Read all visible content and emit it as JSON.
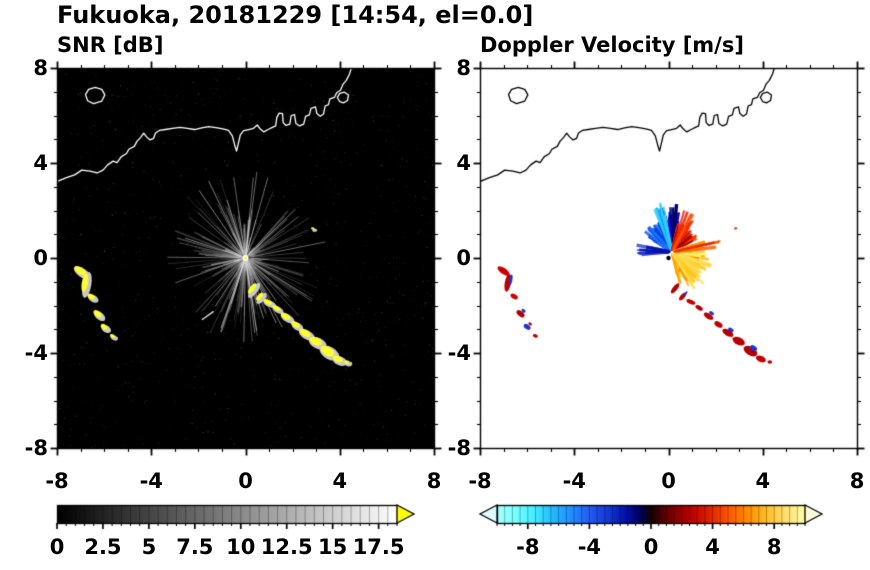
{
  "title": "Fukuoka, 20181229 [14:54, el=0.0]",
  "panels": {
    "snr": {
      "label": "SNR [dB]"
    },
    "doppler": {
      "label": "Doppler Velocity [m/s]"
    }
  },
  "axes": {
    "xlim": [
      -8,
      8
    ],
    "ylim": [
      -8,
      8
    ],
    "xtick_labels": [
      "-8",
      "-4",
      "0",
      "4",
      "8"
    ],
    "xtick_values": [
      -8,
      -4,
      0,
      4,
      8
    ],
    "ytick_labels": [
      "8",
      "4",
      "0",
      "-4",
      "-8"
    ],
    "ytick_values": [
      8,
      4,
      0,
      -4,
      -8
    ]
  },
  "colorbars": {
    "snr": {
      "range": [
        0,
        18.5
      ],
      "tick_labels": [
        "0",
        "2.5",
        "5",
        "7.5",
        "10",
        "12.5",
        "15",
        "17.5"
      ],
      "tick_values": [
        0,
        2.5,
        5,
        7.5,
        10,
        12.5,
        15,
        17.5
      ],
      "stops": [
        [
          0,
          "#000000"
        ],
        [
          1,
          "#ffffff"
        ]
      ],
      "over_color": "#ffff00"
    },
    "doppler": {
      "range": [
        -10,
        10
      ],
      "tick_labels": [
        "-8",
        "-4",
        "0",
        "4",
        "8"
      ],
      "tick_values": [
        -8,
        -4,
        0,
        4,
        8
      ],
      "stops": [
        [
          0,
          "#aaffff"
        ],
        [
          0.06,
          "#77ffff"
        ],
        [
          0.12,
          "#44eeff"
        ],
        [
          0.18,
          "#22bbff"
        ],
        [
          0.25,
          "#2288ff"
        ],
        [
          0.31,
          "#2255ee"
        ],
        [
          0.37,
          "#1133cc"
        ],
        [
          0.42,
          "#0011aa"
        ],
        [
          0.46,
          "#000066"
        ],
        [
          0.5,
          "#150000"
        ],
        [
          0.54,
          "#550000"
        ],
        [
          0.58,
          "#880000"
        ],
        [
          0.63,
          "#bb0000"
        ],
        [
          0.69,
          "#dd2200"
        ],
        [
          0.75,
          "#ff5500"
        ],
        [
          0.81,
          "#ff8800"
        ],
        [
          0.87,
          "#ffbb22"
        ],
        [
          0.93,
          "#ffdd66"
        ],
        [
          1,
          "#ffffaa"
        ]
      ],
      "under_color": "#ddffff",
      "over_color": "#ffffdd"
    }
  },
  "chart_data": {
    "type": "heatmap",
    "title": "Fukuoka, 20181229 [14:54, el=0.0]",
    "xlim": [
      -8,
      8
    ],
    "ylim": [
      -8,
      8
    ],
    "radar_center": [
      0,
      0
    ],
    "coastline": {
      "main": [
        [
          -8.05,
          3.2
        ],
        [
          -7.6,
          3.38
        ],
        [
          -7.25,
          3.5
        ],
        [
          -6.95,
          3.7
        ],
        [
          -6.6,
          3.66
        ],
        [
          -6.3,
          3.58
        ],
        [
          -6.05,
          3.7
        ],
        [
          -5.85,
          3.92
        ],
        [
          -5.62,
          4.08
        ],
        [
          -5.45,
          4.02
        ],
        [
          -5.28,
          4.26
        ],
        [
          -5.05,
          4.4
        ],
        [
          -4.95,
          4.58
        ],
        [
          -4.72,
          4.7
        ],
        [
          -4.6,
          4.92
        ],
        [
          -4.45,
          5.08
        ],
        [
          -4.32,
          5.26
        ],
        [
          -4.2,
          5.1
        ],
        [
          -4.05,
          4.97
        ],
        [
          -3.9,
          5.04
        ],
        [
          -3.82,
          5.26
        ],
        [
          -3.66,
          5.37
        ],
        [
          -3.4,
          5.41
        ],
        [
          -3.1,
          5.46
        ],
        [
          -2.78,
          5.5
        ],
        [
          -2.46,
          5.46
        ],
        [
          -2.16,
          5.41
        ],
        [
          -1.86,
          5.48
        ],
        [
          -1.56,
          5.53
        ],
        [
          -1.26,
          5.49
        ],
        [
          -0.96,
          5.44
        ],
        [
          -0.72,
          5.37
        ],
        [
          -0.56,
          5.14
        ],
        [
          -0.46,
          4.76
        ],
        [
          -0.38,
          4.5
        ],
        [
          -0.3,
          4.84
        ],
        [
          -0.22,
          5.18
        ],
        [
          -0.08,
          5.36
        ],
        [
          0.14,
          5.41
        ],
        [
          0.34,
          5.46
        ],
        [
          0.5,
          5.6
        ],
        [
          0.62,
          5.44
        ],
        [
          0.78,
          5.31
        ],
        [
          0.96,
          5.41
        ],
        [
          1.14,
          5.5
        ],
        [
          1.28,
          5.56
        ],
        [
          1.33,
          5.92
        ],
        [
          1.43,
          6.1
        ],
        [
          1.57,
          6.08
        ],
        [
          1.6,
          5.7
        ],
        [
          1.72,
          5.58
        ],
        [
          1.88,
          5.64
        ],
        [
          1.94,
          6.0
        ],
        [
          2.08,
          6.04
        ],
        [
          2.14,
          5.66
        ],
        [
          2.3,
          5.56
        ],
        [
          2.47,
          5.64
        ],
        [
          2.55,
          5.96
        ],
        [
          2.71,
          6.03
        ],
        [
          2.78,
          6.3
        ],
        [
          2.97,
          6.36
        ],
        [
          3.03,
          6.08
        ],
        [
          3.17,
          5.97
        ],
        [
          3.31,
          6.06
        ],
        [
          3.38,
          6.4
        ],
        [
          3.52,
          6.46
        ],
        [
          3.58,
          6.7
        ],
        [
          3.77,
          6.76
        ],
        [
          3.87,
          6.96
        ],
        [
          4.03,
          7.06
        ],
        [
          4.14,
          7.32
        ],
        [
          4.28,
          7.48
        ],
        [
          4.42,
          7.76
        ],
        [
          4.52,
          8.1
        ]
      ],
      "islands": [
        [
          [
            -6.45,
            6.5
          ],
          [
            -6.7,
            6.62
          ],
          [
            -6.79,
            6.88
          ],
          [
            -6.66,
            7.1
          ],
          [
            -6.38,
            7.18
          ],
          [
            -6.1,
            7.1
          ],
          [
            -5.97,
            6.87
          ],
          [
            -6.1,
            6.61
          ]
        ],
        [
          [
            4.0,
            6.58
          ],
          [
            3.9,
            6.76
          ],
          [
            4.0,
            6.93
          ],
          [
            4.2,
            6.98
          ],
          [
            4.37,
            6.86
          ],
          [
            4.33,
            6.63
          ],
          [
            4.16,
            6.53
          ]
        ]
      ]
    },
    "echoes": [
      {
        "x": -7.0,
        "y": -0.55,
        "rx": 0.3,
        "ry": 0.13,
        "rot": -35,
        "c": "#cc0000",
        "c2": null
      },
      {
        "x": -6.82,
        "y": -1.05,
        "rx": 0.13,
        "ry": 0.38,
        "rot": -10,
        "c": "#bb0000",
        "c2": "#2233cc"
      },
      {
        "x": -6.55,
        "y": -1.62,
        "rx": 0.17,
        "ry": 0.1,
        "rot": -30,
        "c": "#cc0000",
        "c2": null
      },
      {
        "x": -6.28,
        "y": -2.35,
        "rx": 0.2,
        "ry": 0.11,
        "rot": -40,
        "c": "#b00000",
        "c2": "#2233cc"
      },
      {
        "x": -6.0,
        "y": -2.9,
        "rx": 0.16,
        "ry": 0.1,
        "rot": -35,
        "c": "#2233cc",
        "c2": "#bb0000"
      },
      {
        "x": -5.65,
        "y": -3.28,
        "rx": 0.11,
        "ry": 0.07,
        "rot": -20,
        "c": "#bb0000",
        "c2": null
      },
      {
        "x": 0.28,
        "y": -1.28,
        "rx": 0.1,
        "ry": 0.26,
        "rot": -38,
        "c": "#b00000",
        "c2": null
      },
      {
        "x": 0.6,
        "y": -1.62,
        "rx": 0.09,
        "ry": 0.2,
        "rot": -42,
        "c": "#bb0000",
        "c2": "#2233cc"
      },
      {
        "x": 0.95,
        "y": -1.85,
        "rx": 0.2,
        "ry": 0.09,
        "rot": -22,
        "c": "#c00000",
        "c2": null
      },
      {
        "x": 1.3,
        "y": -2.1,
        "rx": 0.17,
        "ry": 0.09,
        "rot": -30,
        "c": "#b00000",
        "c2": null
      },
      {
        "x": 1.7,
        "y": -2.45,
        "rx": 0.23,
        "ry": 0.11,
        "rot": -33,
        "c": "#bb0000",
        "c2": "#2233cc"
      },
      {
        "x": 2.12,
        "y": -2.8,
        "rx": 0.19,
        "ry": 0.11,
        "rot": -30,
        "c": "#c00000",
        "c2": null
      },
      {
        "x": 2.52,
        "y": -3.15,
        "rx": 0.26,
        "ry": 0.13,
        "rot": -30,
        "c": "#b00000",
        "c2": "#2233cc"
      },
      {
        "x": 2.98,
        "y": -3.5,
        "rx": 0.28,
        "ry": 0.16,
        "rot": -26,
        "c": "#bb0000",
        "c2": null
      },
      {
        "x": 3.48,
        "y": -3.92,
        "rx": 0.32,
        "ry": 0.18,
        "rot": -30,
        "c": "#b00000",
        "c2": "#2233cc"
      },
      {
        "x": 3.92,
        "y": -4.25,
        "rx": 0.22,
        "ry": 0.13,
        "rot": -22,
        "c": "#c00000",
        "c2": null
      },
      {
        "x": 4.3,
        "y": -4.38,
        "rx": 0.1,
        "ry": 0.07,
        "rot": 0,
        "c": "#bb0000",
        "c2": null
      },
      {
        "x": 2.85,
        "y": 1.25,
        "rx": 0.07,
        "ry": 0.05,
        "rot": 0,
        "c": "#cc4400",
        "c2": null
      }
    ],
    "panels": [
      {
        "name": "SNR [dB]",
        "background": "#000000",
        "colormap": "gray 0-18.5 dB, yellow above 18.5",
        "echo_color": "#ffff2e",
        "clutter_fan": {
          "center": [
            0,
            0
          ],
          "max_radius": 3.7
        }
      },
      {
        "name": "Doppler Velocity [m/s]",
        "background": "#ffffff",
        "cluster": {
          "cx": 0.15,
          "cy": 0.25,
          "sectors": [
            {
              "a0": 95,
              "a1": 150,
              "l0": 0.3,
              "l1": 1.5,
              "n": 80,
              "colors": [
                "#1155ee",
                "#0033cc",
                "#2277ff",
                "#0044dd"
              ]
            },
            {
              "a0": 78,
              "a1": 105,
              "l0": 1.0,
              "l1": 2.1,
              "n": 28,
              "colors": [
                "#000099",
                "#0000cc",
                "#000066"
              ]
            },
            {
              "a0": 95,
              "a1": 112,
              "l0": 1.6,
              "l1": 2.2,
              "n": 9,
              "colors": [
                "#33ccff",
                "#00aaff"
              ]
            },
            {
              "a0": 168,
              "a1": 188,
              "l0": 0.6,
              "l1": 1.6,
              "n": 10,
              "colors": [
                "#0011aa",
                "#2233cc"
              ]
            },
            {
              "a0": 25,
              "a1": 78,
              "l0": 0.3,
              "l1": 1.3,
              "n": 60,
              "colors": [
                "#cc1100",
                "#ee3300",
                "#ff4400",
                "#aa0000"
              ]
            },
            {
              "a0": 55,
              "a1": 75,
              "l0": 1.1,
              "l1": 1.9,
              "n": 12,
              "colors": [
                "#ee2200",
                "#ff5500"
              ]
            },
            {
              "a0": -78,
              "a1": 20,
              "l0": 0.3,
              "l1": 1.6,
              "n": 120,
              "colors": [
                "#ff8800",
                "#ffaa00",
                "#ffcc33",
                "#ffee66",
                "#ff9900",
                "#ffdd44"
              ]
            },
            {
              "a0": -60,
              "a1": -15,
              "l0": 1.2,
              "l1": 2.0,
              "n": 18,
              "colors": [
                "#ffdd55",
                "#ffcc22"
              ]
            },
            {
              "a0": 5,
              "a1": 15,
              "l0": 1.8,
              "l1": 2.3,
              "n": 4,
              "colors": [
                "#ff6600",
                "#dd2200"
              ]
            }
          ]
        }
      }
    ]
  }
}
